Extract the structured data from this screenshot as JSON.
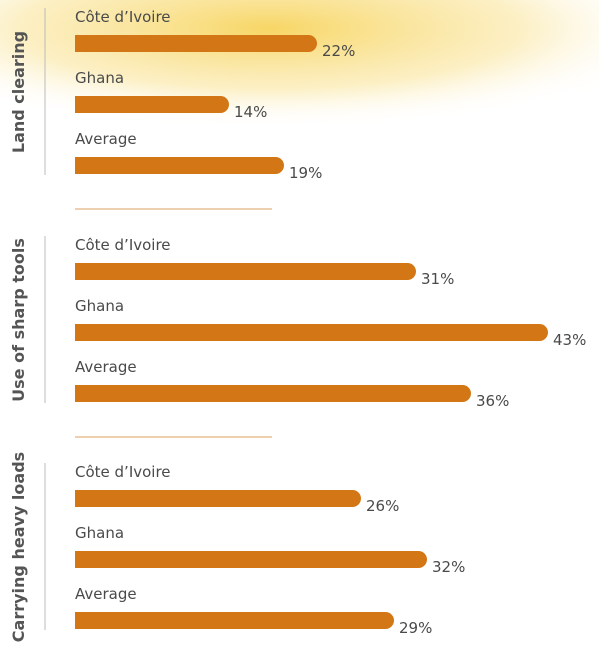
{
  "chart_data": [
    {
      "type": "bar",
      "title": "Land clearing",
      "categories": [
        "Côte d’Ivoire",
        "Ghana",
        "Average"
      ],
      "values": [
        22,
        14,
        19
      ],
      "value_labels": [
        "22%",
        "14%",
        "19%"
      ],
      "color": "#d37616"
    },
    {
      "type": "bar",
      "title": "Use of sharp tools",
      "categories": [
        "Côte d’Ivoire",
        "Ghana",
        "Average"
      ],
      "values": [
        31,
        43,
        36
      ],
      "value_labels": [
        "31%",
        "43%",
        "36%"
      ],
      "color": "#d37616"
    },
    {
      "type": "bar",
      "title": "Carrying heavy loads",
      "categories": [
        "Côte d’Ivoire",
        "Ghana",
        "Average"
      ],
      "values": [
        26,
        32,
        29
      ],
      "value_labels": [
        "26%",
        "32%",
        "29%"
      ],
      "color": "#d37616"
    }
  ]
}
